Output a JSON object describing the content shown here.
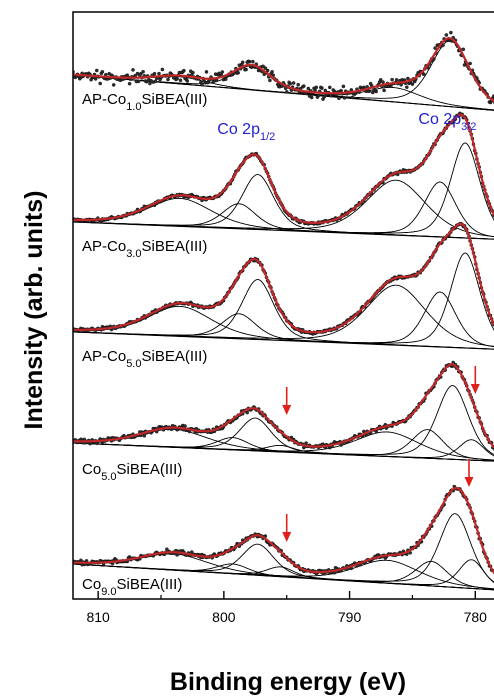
{
  "chart_data": {
    "type": "line",
    "xlabel": "Binding energy (eV)",
    "ylabel": "Intensity (arb. units)",
    "xlim": [
      812,
      777
    ],
    "x_reversed": true,
    "xticks": [
      810,
      800,
      790,
      780
    ],
    "tick_labels": [
      "810",
      "800",
      "790",
      "780"
    ],
    "colors": {
      "data_points": "#2f2f2f",
      "fit": "#c0282a",
      "components": "#000000",
      "arrows": "#e0201b",
      "peak_labels": "#1f1fd0"
    },
    "peak_labels": [
      {
        "base": "Co 2p",
        "sub": "1/2",
        "x": 797.5
      },
      {
        "base": "Co 2p",
        "sub": "3/2",
        "x": 781.5
      }
    ],
    "series": [
      {
        "label": {
          "pre": "AP-Co",
          "sub": "1.0",
          "post": "SiBEA(III)"
        },
        "peaks": [
          {
            "center": 782.0,
            "height": 0.55,
            "width": 1.8
          },
          {
            "center": 786.5,
            "height": 0.12,
            "width": 2.5
          },
          {
            "center": 797.8,
            "height": 0.2,
            "width": 1.8
          },
          {
            "center": 803.5,
            "height": 0.06,
            "width": 2.5
          }
        ],
        "arrows": []
      },
      {
        "label": {
          "pre": "AP-Co",
          "sub": "3.0",
          "post": "SiBEA(III)"
        },
        "peaks": [
          {
            "center": 780.8,
            "height": 0.95,
            "width": 1.4
          },
          {
            "center": 782.8,
            "height": 0.55,
            "width": 1.5
          },
          {
            "center": 786.3,
            "height": 0.55,
            "width": 2.8
          },
          {
            "center": 797.3,
            "height": 0.55,
            "width": 1.5
          },
          {
            "center": 798.8,
            "height": 0.25,
            "width": 1.6
          },
          {
            "center": 803.5,
            "height": 0.28,
            "width": 3.0
          }
        ],
        "arrows": []
      },
      {
        "label": {
          "pre": "AP-Co",
          "sub": "5.0",
          "post": "SiBEA(III)"
        },
        "peaks": [
          {
            "center": 780.8,
            "height": 0.95,
            "width": 1.4
          },
          {
            "center": 782.8,
            "height": 0.55,
            "width": 1.5
          },
          {
            "center": 786.3,
            "height": 0.6,
            "width": 2.8
          },
          {
            "center": 797.3,
            "height": 0.6,
            "width": 1.5
          },
          {
            "center": 798.8,
            "height": 0.25,
            "width": 1.6
          },
          {
            "center": 803.5,
            "height": 0.3,
            "width": 3.0
          }
        ],
        "arrows": []
      },
      {
        "label": {
          "pre": "Co",
          "sub": "5.0",
          "post": "SiBEA(III)"
        },
        "peaks": [
          {
            "center": 780.3,
            "height": 0.25,
            "width": 1.2
          },
          {
            "center": 781.8,
            "height": 0.9,
            "width": 1.5
          },
          {
            "center": 783.8,
            "height": 0.35,
            "width": 1.5
          },
          {
            "center": 787.0,
            "height": 0.3,
            "width": 3.0
          },
          {
            "center": 795.5,
            "height": 0.08,
            "width": 1.3
          },
          {
            "center": 797.5,
            "height": 0.4,
            "width": 1.5
          },
          {
            "center": 799.3,
            "height": 0.15,
            "width": 1.5
          },
          {
            "center": 804.0,
            "height": 0.22,
            "width": 3.2
          }
        ],
        "arrows": [
          795.0,
          780.0
        ]
      },
      {
        "label": {
          "pre": "Co",
          "sub": "9.0",
          "post": "SiBEA(III)"
        },
        "peaks": [
          {
            "center": 780.3,
            "height": 0.35,
            "width": 1.2
          },
          {
            "center": 781.6,
            "height": 0.9,
            "width": 1.5
          },
          {
            "center": 783.5,
            "height": 0.3,
            "width": 1.5
          },
          {
            "center": 787.0,
            "height": 0.28,
            "width": 3.0
          },
          {
            "center": 795.5,
            "height": 0.12,
            "width": 1.3
          },
          {
            "center": 797.3,
            "height": 0.38,
            "width": 1.5
          },
          {
            "center": 799.3,
            "height": 0.12,
            "width": 1.5
          },
          {
            "center": 804.0,
            "height": 0.2,
            "width": 3.2
          }
        ],
        "arrows": [
          795.0,
          780.5
        ]
      }
    ]
  }
}
